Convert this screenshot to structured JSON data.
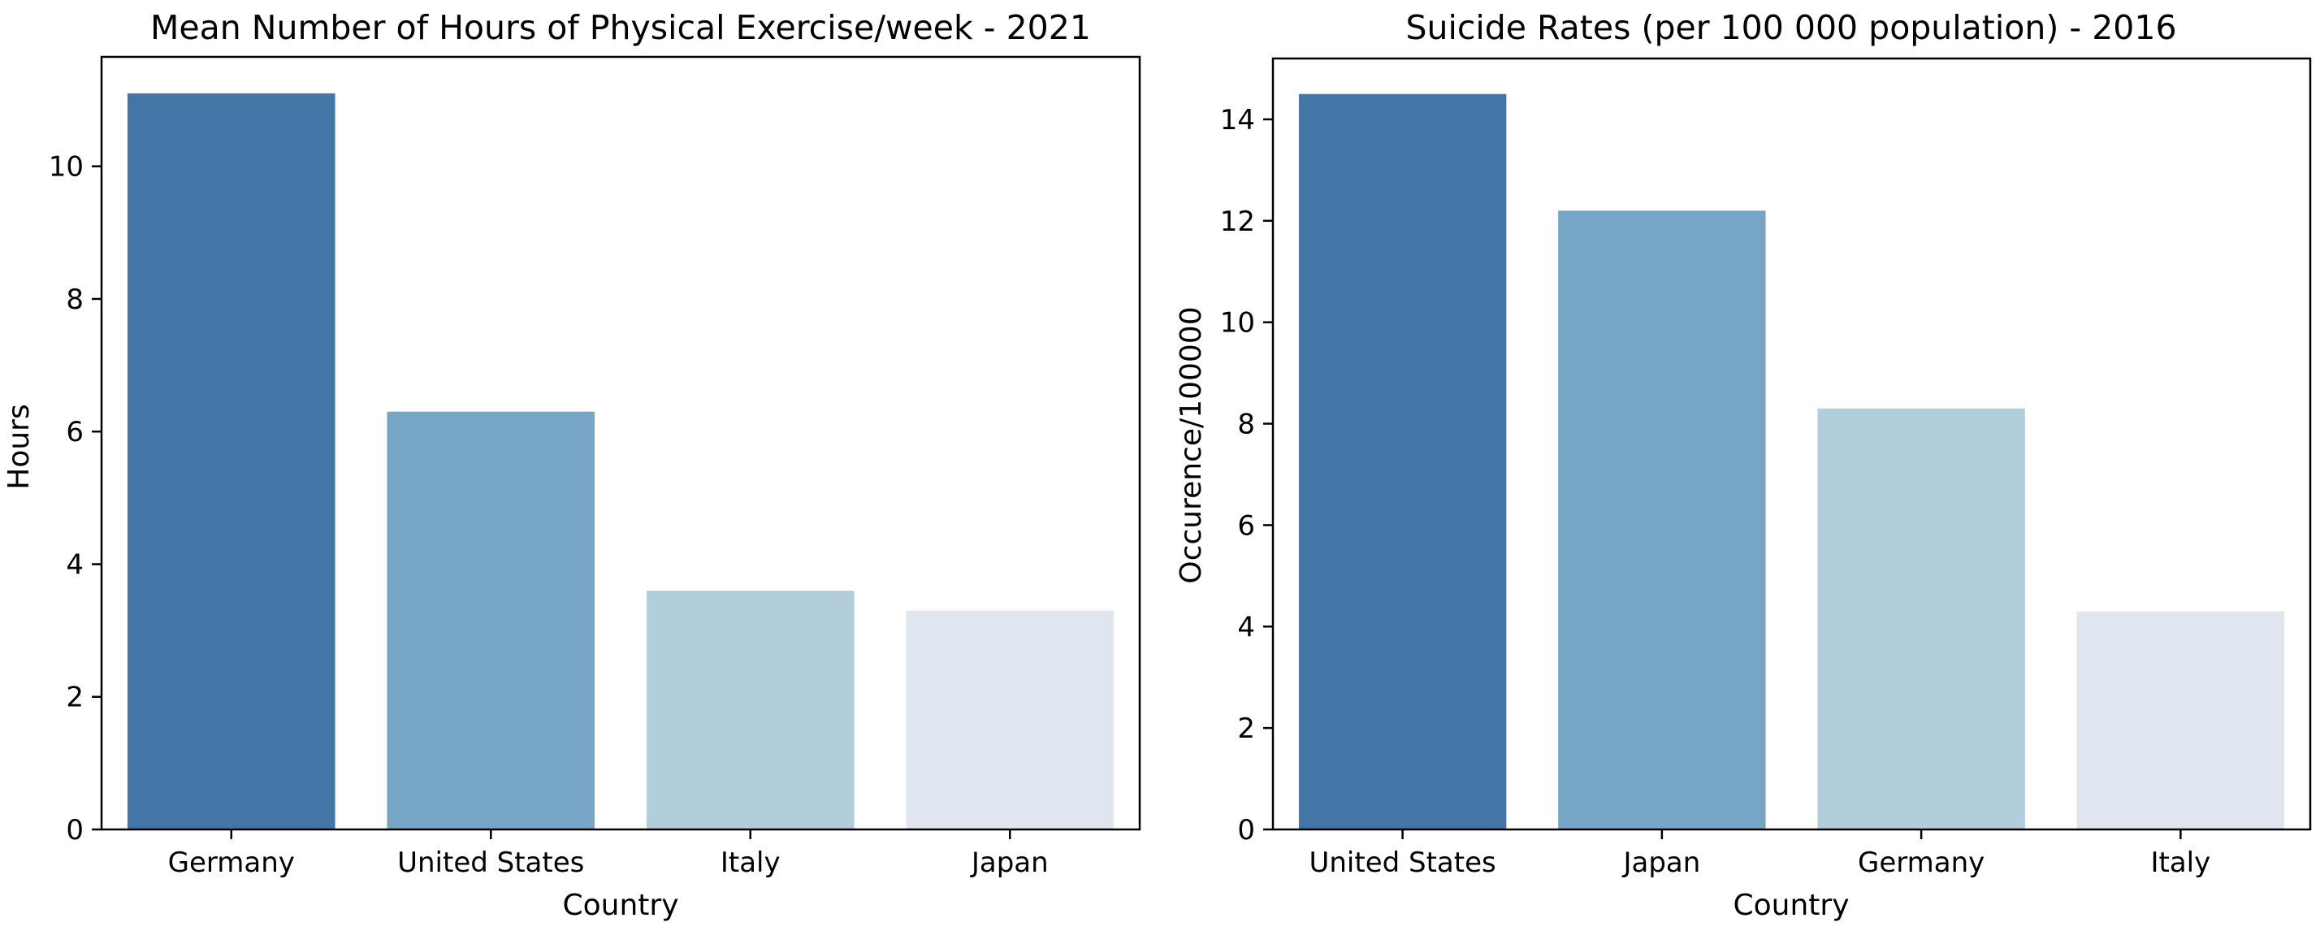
{
  "chart_data": [
    {
      "type": "bar",
      "title": "Mean Number of Hours of Physical Exercise/week - 2021",
      "xlabel": "Country",
      "ylabel": "Hours",
      "categories": [
        "Germany",
        "United States",
        "Italy",
        "Japan"
      ],
      "values": [
        11.1,
        6.3,
        3.6,
        3.3
      ],
      "colors": [
        "#4376a6",
        "#77a5c6",
        "#b2cedc",
        "#dfe6f0"
      ],
      "ylim": [
        0,
        11.65
      ],
      "yticks": [
        0,
        2,
        4,
        6,
        8,
        10
      ],
      "grid": false,
      "legend": "none"
    },
    {
      "type": "bar",
      "title": "Suicide Rates (per 100 000 population) - 2016",
      "xlabel": "Country",
      "ylabel": "Occurence/100000",
      "categories": [
        "United States",
        "Japan",
        "Germany",
        "Italy"
      ],
      "values": [
        14.5,
        12.2,
        8.3,
        4.3
      ],
      "colors": [
        "#4376a6",
        "#77a5c6",
        "#b2cedc",
        "#dfe6f0"
      ],
      "ylim": [
        0,
        15.2
      ],
      "yticks": [
        0,
        2,
        4,
        6,
        8,
        10,
        12,
        14
      ],
      "grid": false,
      "legend": "none"
    }
  ]
}
